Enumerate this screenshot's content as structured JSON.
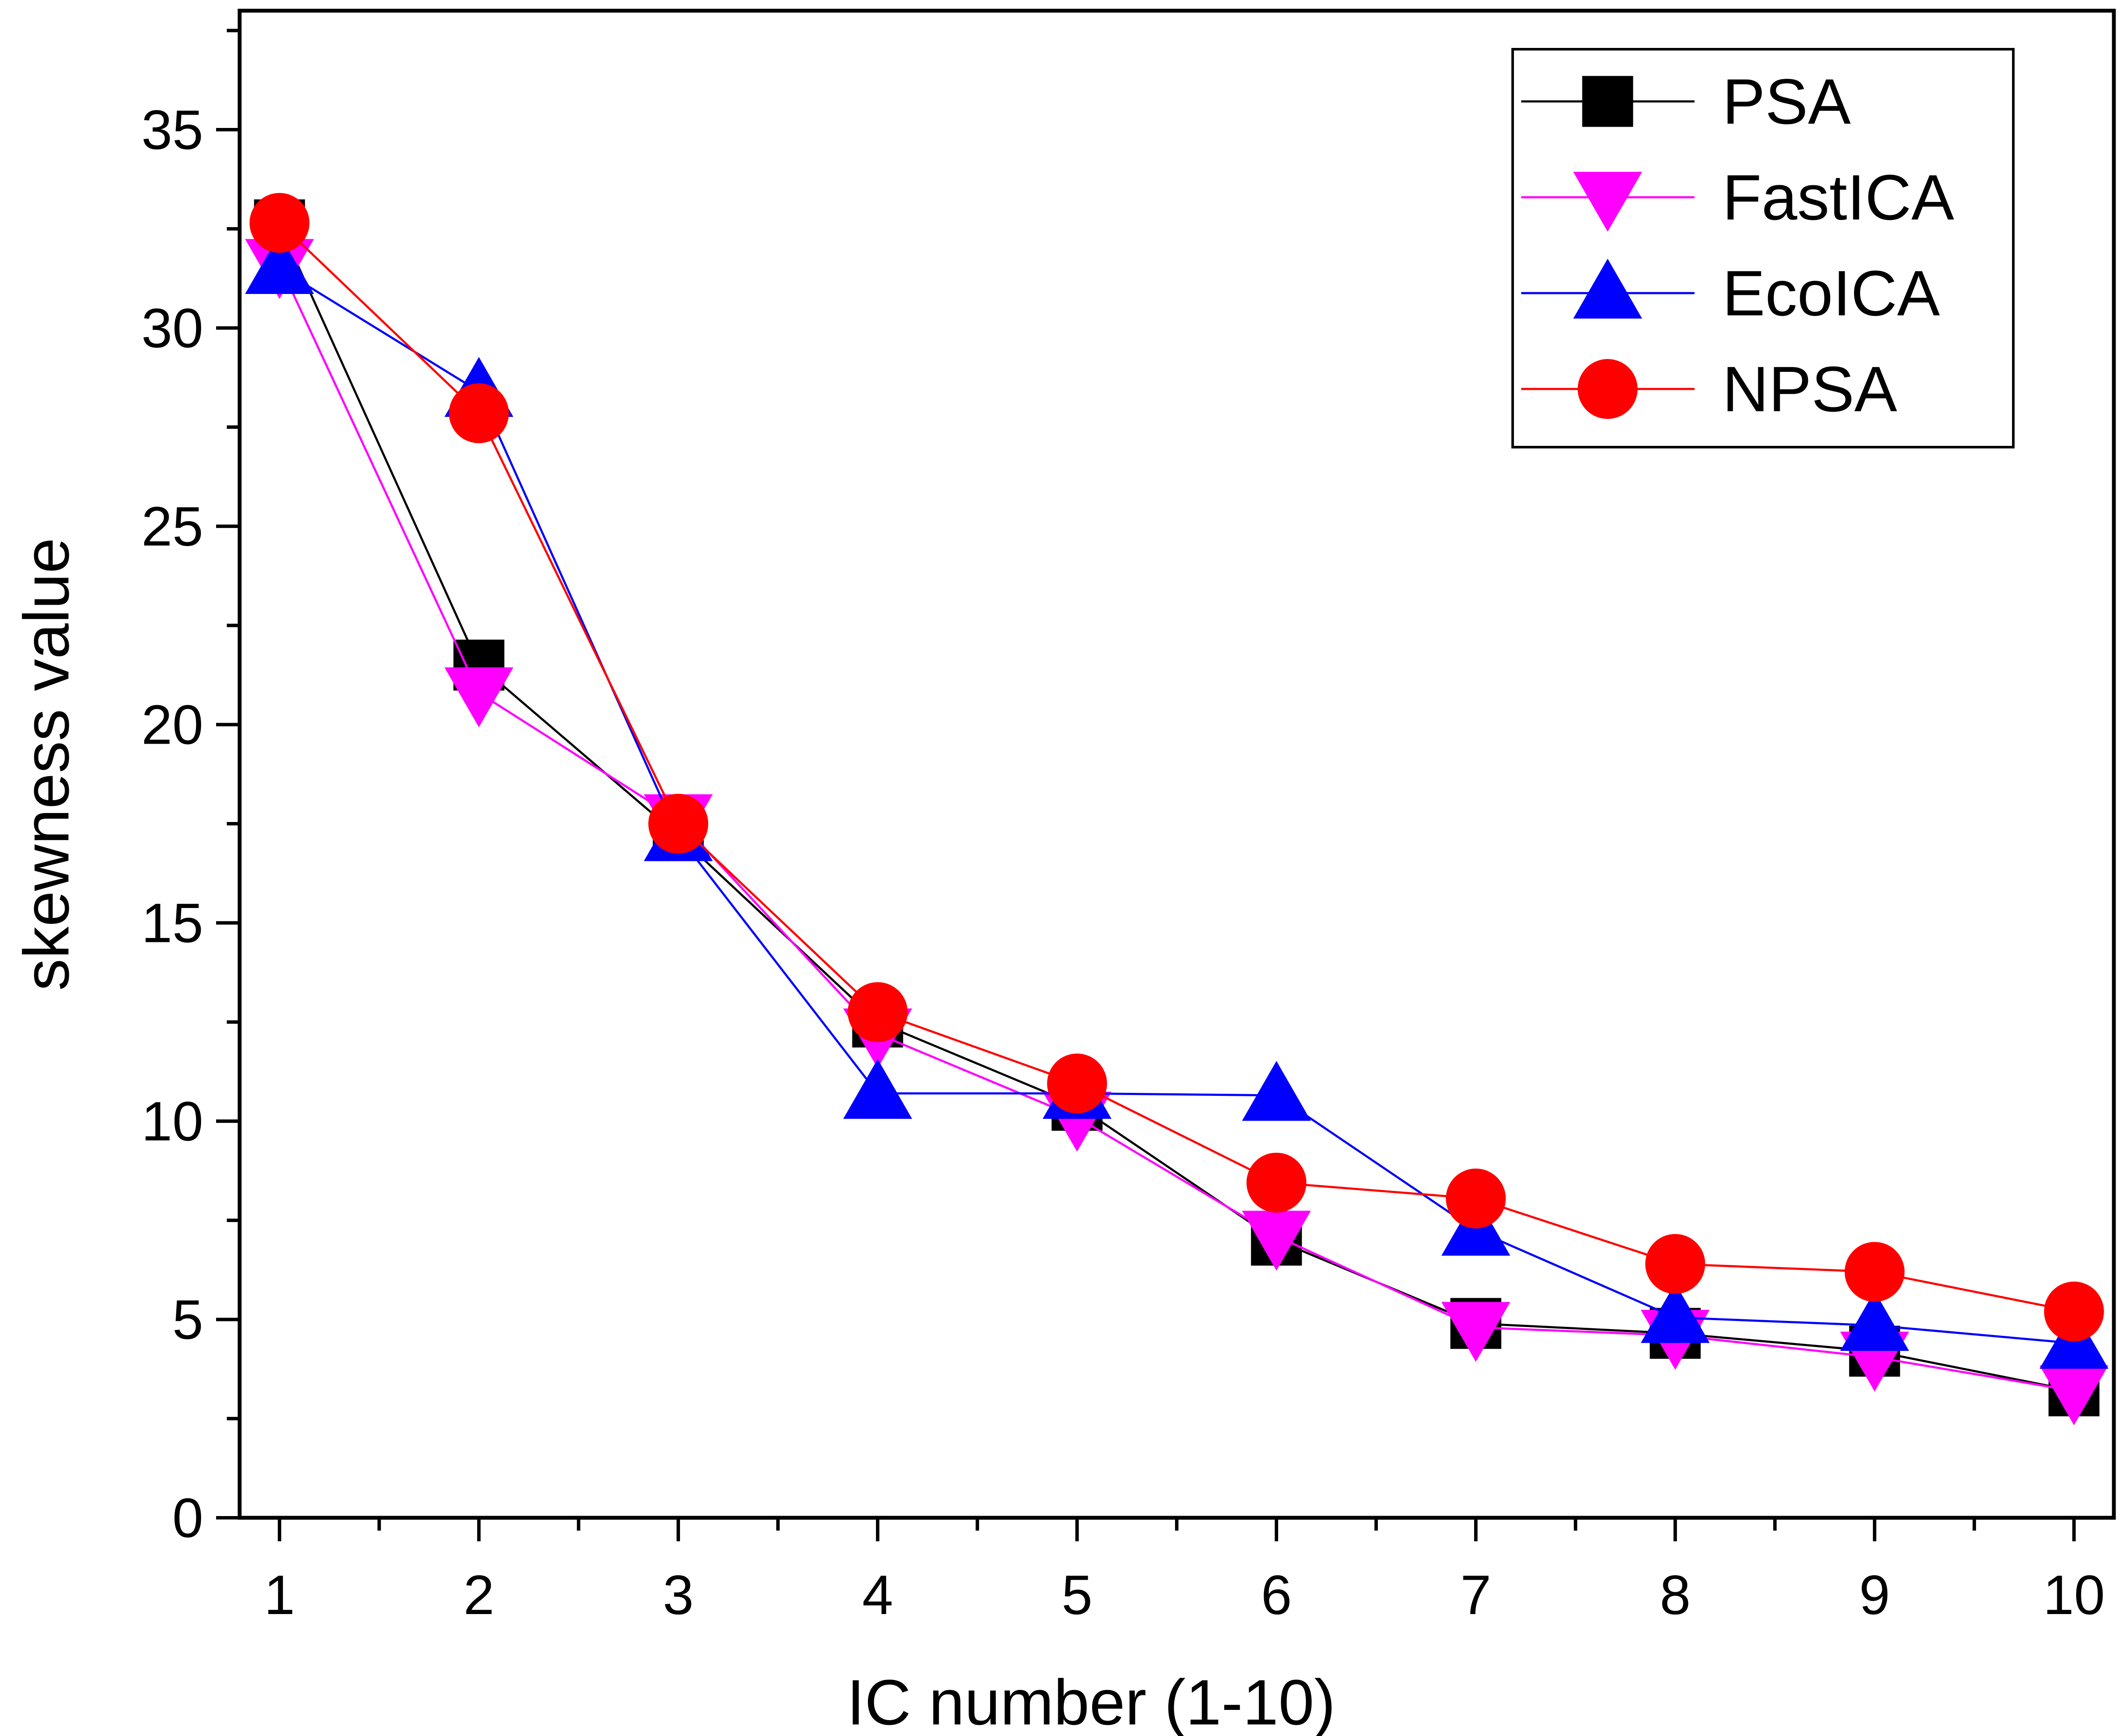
{
  "chart_data": {
    "type": "line",
    "title": "",
    "xlabel": "IC number (1-10)",
    "ylabel": "skewness value",
    "x": [
      1,
      2,
      3,
      4,
      5,
      6,
      7,
      8,
      9,
      10
    ],
    "xlim": [
      0.8,
      10.2
    ],
    "ylim": [
      0,
      38
    ],
    "xticks": [
      1,
      2,
      3,
      4,
      5,
      6,
      7,
      8,
      9,
      10
    ],
    "yticks": [
      0,
      5,
      10,
      15,
      20,
      25,
      30,
      35
    ],
    "legend_position": "top-right",
    "series": [
      {
        "name": "PSA",
        "color": "#000000",
        "marker": "square",
        "values": [
          32.6,
          21.5,
          17.2,
          12.5,
          10.4,
          7.0,
          4.9,
          4.65,
          4.2,
          3.2
        ]
      },
      {
        "name": "FastICA",
        "color": "#ff00ff",
        "marker": "triangle-down",
        "values": [
          31.6,
          20.8,
          17.6,
          12.2,
          10.1,
          7.1,
          4.8,
          4.6,
          4.05,
          3.2
        ]
      },
      {
        "name": "EcoICA",
        "color": "#0000ff",
        "marker": "triangle-up",
        "values": [
          31.5,
          28.4,
          17.2,
          10.7,
          10.7,
          10.65,
          7.25,
          5.05,
          4.85,
          4.4
        ]
      },
      {
        "name": "NPSA",
        "color": "#ff0000",
        "marker": "circle",
        "values": [
          32.65,
          27.85,
          17.5,
          12.75,
          10.95,
          8.45,
          8.05,
          6.4,
          6.2,
          5.2
        ]
      }
    ]
  }
}
